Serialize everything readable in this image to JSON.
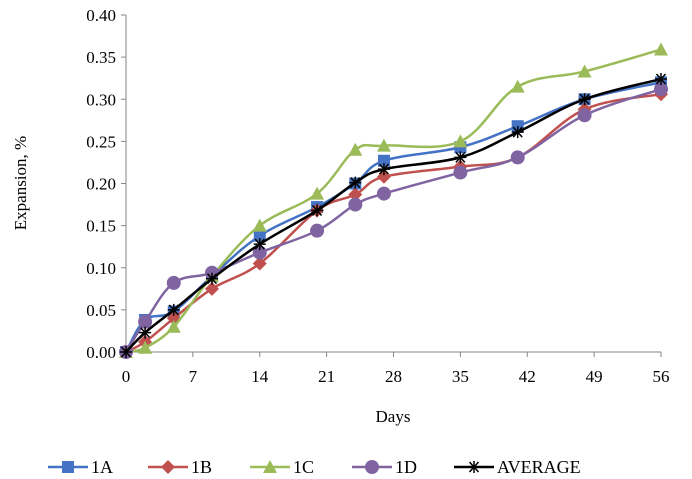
{
  "chart_data": {
    "type": "line",
    "title": "",
    "xlabel": "Days",
    "ylabel": "Expansion, %",
    "xlim": [
      0,
      56
    ],
    "ylim": [
      0,
      0.4
    ],
    "x_ticks": [
      "0",
      "7",
      "14",
      "21",
      "28",
      "35",
      "42",
      "49",
      "56"
    ],
    "y_ticks": [
      "0.00",
      "0.05",
      "0.10",
      "0.15",
      "0.20",
      "0.25",
      "0.30",
      "0.35",
      "0.40"
    ],
    "grid": false,
    "legend_position": "bottom",
    "series": [
      {
        "name": "1A",
        "color": "#4472C4",
        "marker": "square",
        "x": [
          0,
          2,
          5,
          9,
          14,
          20,
          24,
          27,
          35,
          41,
          48,
          56
        ],
        "y": [
          0.0,
          0.038,
          0.048,
          0.09,
          0.138,
          0.172,
          0.2,
          0.227,
          0.243,
          0.268,
          0.3,
          0.32
        ]
      },
      {
        "name": "1B",
        "color": "#C0504D",
        "marker": "diamond",
        "x": [
          0,
          2,
          5,
          9,
          14,
          20,
          24,
          27,
          35,
          41,
          48,
          56
        ],
        "y": [
          0.0,
          0.012,
          0.04,
          0.075,
          0.105,
          0.168,
          0.187,
          0.208,
          0.22,
          0.231,
          0.288,
          0.306
        ]
      },
      {
        "name": "1C",
        "color": "#9BBB59",
        "marker": "triangle",
        "x": [
          0,
          2,
          5,
          9,
          14,
          20,
          24,
          27,
          35,
          41,
          48,
          56
        ],
        "y": [
          0.0,
          0.005,
          0.03,
          0.09,
          0.15,
          0.188,
          0.24,
          0.245,
          0.25,
          0.315,
          0.333,
          0.359
        ]
      },
      {
        "name": "1D",
        "color": "#8064A2",
        "marker": "circle",
        "x": [
          0,
          2,
          5,
          9,
          14,
          20,
          24,
          27,
          35,
          41,
          48,
          56
        ],
        "y": [
          0.0,
          0.036,
          0.082,
          0.094,
          0.118,
          0.144,
          0.175,
          0.188,
          0.213,
          0.231,
          0.281,
          0.312
        ]
      },
      {
        "name": "AVERAGE",
        "color": "#000000",
        "marker": "star",
        "x": [
          0,
          2,
          5,
          9,
          14,
          20,
          24,
          27,
          35,
          41,
          48,
          56
        ],
        "y": [
          0.0,
          0.023,
          0.05,
          0.087,
          0.128,
          0.168,
          0.201,
          0.217,
          0.231,
          0.261,
          0.3,
          0.324
        ]
      }
    ]
  }
}
